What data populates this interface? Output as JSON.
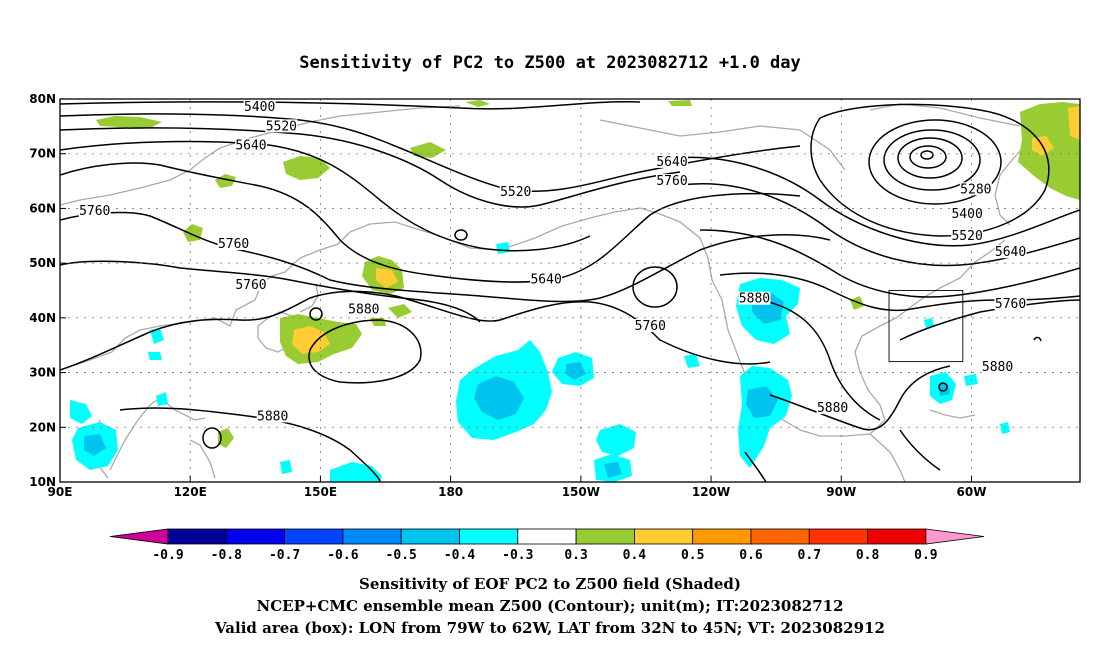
{
  "title": "Sensitivity of PC2 to Z500 at 2023082712 +1.0 day",
  "map": {
    "lat_labels": [
      "80N",
      "70N",
      "60N",
      "50N",
      "40N",
      "30N",
      "20N",
      "10N"
    ],
    "lat_values": [
      80,
      70,
      60,
      50,
      40,
      30,
      20,
      10
    ],
    "lon_labels": [
      "90E",
      "120E",
      "150E",
      "180",
      "150W",
      "120W",
      "90W",
      "60W"
    ],
    "lon_values": [
      90,
      120,
      150,
      180,
      210,
      240,
      270,
      300
    ],
    "extent": {
      "lon": [
        90,
        325
      ],
      "lat": [
        10,
        80
      ]
    },
    "grid": true,
    "contours": [
      {
        "label": "5400",
        "lon": 136,
        "lat": 78.5
      },
      {
        "label": "5520",
        "lon": 141,
        "lat": 75.0
      },
      {
        "label": "5640",
        "lon": 134,
        "lat": 71.5
      },
      {
        "label": "5760",
        "lon": 98,
        "lat": 59.5
      },
      {
        "label": "5760",
        "lon": 130,
        "lat": 53.5
      },
      {
        "label": "5760",
        "lon": 134,
        "lat": 46.0
      },
      {
        "label": "5880",
        "lon": 160,
        "lat": 41.5
      },
      {
        "label": "5880",
        "lon": 139,
        "lat": 22.0
      },
      {
        "label": "5520",
        "lon": 195,
        "lat": 63.0
      },
      {
        "label": "5640",
        "lon": 202,
        "lat": 47.0
      },
      {
        "label": "5640",
        "lon": 231,
        "lat": 68.5
      },
      {
        "label": "5760",
        "lon": 231,
        "lat": 65.0
      },
      {
        "label": "5760",
        "lon": 226,
        "lat": 38.5
      },
      {
        "label": "5880",
        "lon": 250,
        "lat": 43.5
      },
      {
        "label": "5880",
        "lon": 268,
        "lat": 23.5
      },
      {
        "label": "5280",
        "lon": 301,
        "lat": 63.5
      },
      {
        "label": "5400",
        "lon": 299,
        "lat": 59.0
      },
      {
        "label": "5520",
        "lon": 299,
        "lat": 55.0
      },
      {
        "label": "5640",
        "lon": 309,
        "lat": 52.0
      },
      {
        "label": "5760",
        "lon": 309,
        "lat": 42.5
      },
      {
        "label": "5880",
        "lon": 306,
        "lat": 31.0
      }
    ],
    "valid_box": {
      "lon": [
        281,
        298
      ],
      "lat": [
        32,
        45
      ]
    }
  },
  "colorbar": {
    "labels": [
      "-0.9",
      "-0.8",
      "-0.7",
      "-0.6",
      "-0.5",
      "-0.4",
      "-0.3",
      "0.3",
      "0.4",
      "0.5",
      "0.6",
      "0.7",
      "0.8",
      "0.9"
    ],
    "colors": [
      "#cc0099",
      "#000099",
      "#0000ee",
      "#0044ff",
      "#0088ff",
      "#00c4ee",
      "#00ffff",
      "#ffffff",
      "#99cc33",
      "#ffcc33",
      "#ff9900",
      "#ff6600",
      "#ff3300",
      "#ee0000",
      "#ff99cc"
    ]
  },
  "footer": [
    "Sensitivity of EOF PC2 to Z500 field (Shaded)",
    "NCEP+CMC ensemble mean Z500 (Contour); unit(m); IT:2023082712",
    "Valid area (box): LON from 79W to 62W, LAT from 32N to 45N; VT: 2023082912"
  ]
}
